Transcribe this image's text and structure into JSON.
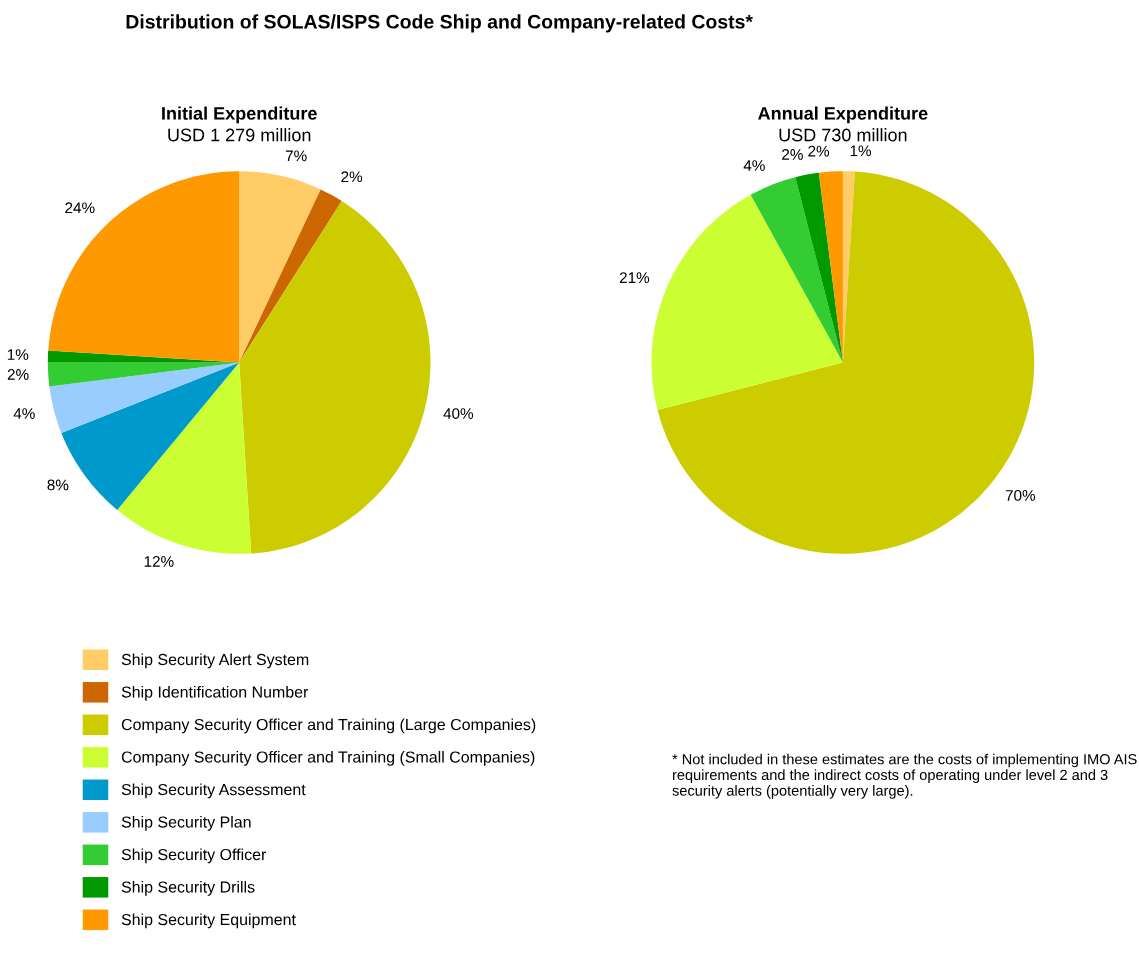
{
  "chart_data": [
    {
      "type": "pie",
      "title": "Initial Expenditure",
      "subtitle": "USD 1 279 million",
      "annotations": [
        "Distribution of SOLAS/ISPS Code Ship and Company-related Costs*"
      ],
      "legend": "bottom",
      "categories": [
        "Ship Security Alert System",
        "Ship Identification Number",
        "Company Security Officer and Training (Large Companies)",
        "Company Security Officer and Training (Small Companies)",
        "Ship Security Assessment",
        "Ship Security Plan",
        "Ship Security Officer",
        "Ship Security Drills",
        "Ship Security Equipment"
      ],
      "values": [
        7,
        2,
        40,
        12,
        8,
        4,
        2,
        1,
        24
      ],
      "value_labels": [
        "7%",
        "2%",
        "40%",
        "12%",
        "8%",
        "4%",
        "2%",
        "1%",
        "24%"
      ],
      "colors": [
        "#ffcc66",
        "#cc6600",
        "#cccc00",
        "#ccff33",
        "#0099cc",
        "#99ccff",
        "#33cc33",
        "#009900",
        "#ff9900"
      ]
    },
    {
      "type": "pie",
      "title": "Annual Expenditure",
      "subtitle": "USD 730 million",
      "annotations": [
        "* Not included in these estimates are the costs of implementing IMO AIS requirements and the indirect costs of operating under level 2 and 3 security alerts (potentially very large)."
      ],
      "categories": [
        null,
        null,
        null,
        null,
        null,
        null
      ],
      "values": [
        1,
        70,
        21,
        4,
        2,
        2
      ],
      "value_labels": [
        "1%",
        "70%",
        "21%",
        "4%",
        "2%",
        "2%"
      ],
      "colors": [
        "#ffcc66",
        "#cccc00",
        "#ccff33",
        "#33cc33",
        "#009900",
        "#ff9900"
      ]
    }
  ]
}
